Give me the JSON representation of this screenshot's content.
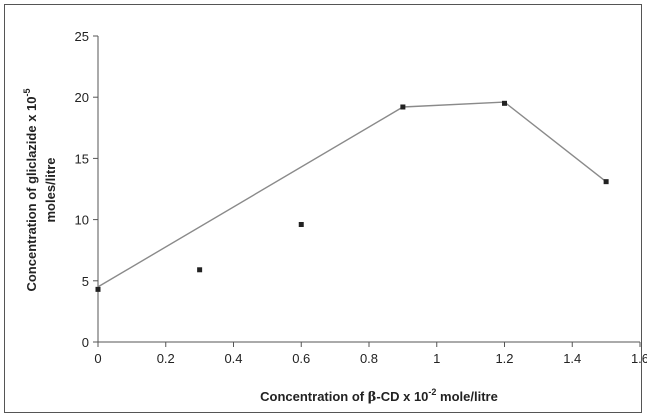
{
  "chart_data": {
    "type": "line",
    "xlabel_prefix": "Concentration of ",
    "xlabel_beta": "β",
    "xlabel_mid": "-CD x 10",
    "xlabel_exp": "-2",
    "xlabel_suffix": " mole/litre",
    "ylabel_line1_prefix": "Concentration of gliclazide x 10",
    "ylabel_line1_exp": "-5",
    "ylabel_line2": "moles/litre",
    "xlim": [
      0,
      1.6
    ],
    "ylim": [
      0,
      25
    ],
    "x_ticks": [
      "0",
      "0.2",
      "0.4",
      "0.6",
      "0.8",
      "1",
      "1.2",
      "1.4",
      "1.6"
    ],
    "y_ticks": [
      "0",
      "5",
      "10",
      "15",
      "20",
      "25"
    ],
    "grid": false,
    "series": [
      {
        "kind": "markers",
        "x": [
          0,
          0.3,
          0.6,
          0.9,
          1.2,
          1.5
        ],
        "y": [
          4.3,
          5.9,
          9.6,
          19.2,
          19.5,
          13.1
        ]
      },
      {
        "kind": "line",
        "x": [
          0,
          0.9,
          1.2,
          1.5
        ],
        "y": [
          4.5,
          19.2,
          19.6,
          13.1
        ]
      }
    ],
    "colors": {
      "line": "#8a8a8a",
      "marker": "#222222",
      "axis": "#555555"
    }
  }
}
